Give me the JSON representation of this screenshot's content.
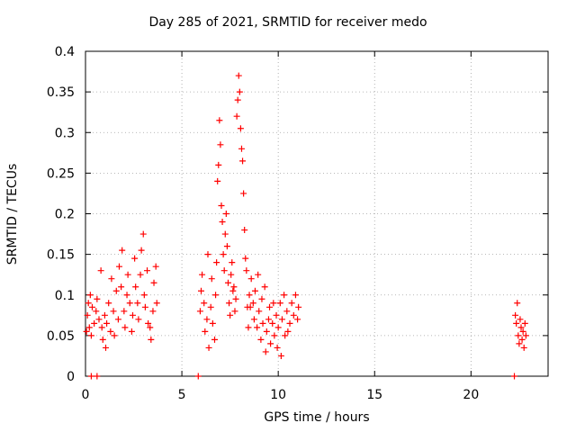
{
  "chart_data": {
    "type": "scatter",
    "title": "Day 285 of 2021, SRMTID for receiver medo",
    "xlabel": "GPS time / hours",
    "ylabel": "SRMTID / TECUs",
    "xlim": [
      0,
      24
    ],
    "ylim": [
      0,
      0.4
    ],
    "xticks": [
      0,
      5,
      10,
      15,
      20
    ],
    "xtick_labels": [
      "0",
      "5",
      "10",
      "15",
      "20"
    ],
    "yticks": [
      0,
      0.05,
      0.1,
      0.15,
      0.2,
      0.25,
      0.3,
      0.35,
      0.4
    ],
    "ytick_labels": [
      "0",
      "0.05",
      "0.1",
      "0.15",
      "0.2",
      "0.25",
      "0.3",
      "0.35",
      "0.4"
    ],
    "grid": true,
    "marker": "+",
    "color": "#ff0000",
    "series": [
      {
        "values": [
          [
            0.05,
            0.055
          ],
          [
            0.1,
            0.075
          ],
          [
            0.15,
            0.09
          ],
          [
            0.2,
            0.06
          ],
          [
            0.25,
            0.1
          ],
          [
            0.3,
            0.05
          ],
          [
            0.35,
            0.085
          ],
          [
            0.45,
            0.065
          ],
          [
            0.55,
            0.08
          ],
          [
            0.6,
            0.095
          ],
          [
            0.7,
            0.07
          ],
          [
            0.8,
            0.13
          ],
          [
            0.85,
            0.06
          ],
          [
            0.9,
            0.045
          ],
          [
            1.0,
            0.075
          ],
          [
            1.05,
            0.035
          ],
          [
            1.1,
            0.065
          ],
          [
            1.2,
            0.09
          ],
          [
            1.3,
            0.055
          ],
          [
            1.35,
            0.12
          ],
          [
            1.45,
            0.08
          ],
          [
            1.5,
            0.05
          ],
          [
            1.6,
            0.105
          ],
          [
            1.7,
            0.07
          ],
          [
            1.75,
            0.135
          ],
          [
            1.85,
            0.11
          ],
          [
            1.9,
            0.155
          ],
          [
            2.0,
            0.08
          ],
          [
            2.05,
            0.06
          ],
          [
            2.15,
            0.1
          ],
          [
            2.2,
            0.125
          ],
          [
            2.3,
            0.09
          ],
          [
            2.4,
            0.055
          ],
          [
            2.45,
            0.075
          ],
          [
            2.55,
            0.145
          ],
          [
            2.6,
            0.11
          ],
          [
            2.7,
            0.09
          ],
          [
            2.75,
            0.07
          ],
          [
            2.85,
            0.125
          ],
          [
            2.9,
            0.155
          ],
          [
            3.0,
            0.175
          ],
          [
            3.05,
            0.1
          ],
          [
            3.1,
            0.085
          ],
          [
            3.2,
            0.13
          ],
          [
            3.25,
            0.065
          ],
          [
            3.35,
            0.06
          ],
          [
            3.4,
            0.045
          ],
          [
            3.5,
            0.08
          ],
          [
            3.55,
            0.115
          ],
          [
            3.65,
            0.135
          ],
          [
            3.7,
            0.09
          ],
          [
            5.95,
            0.08
          ],
          [
            6.0,
            0.105
          ],
          [
            6.05,
            0.125
          ],
          [
            6.15,
            0.09
          ],
          [
            6.2,
            0.055
          ],
          [
            6.3,
            0.07
          ],
          [
            6.35,
            0.15
          ],
          [
            6.4,
            0.035
          ],
          [
            6.5,
            0.085
          ],
          [
            6.55,
            0.12
          ],
          [
            6.6,
            0.065
          ],
          [
            6.7,
            0.045
          ],
          [
            6.75,
            0.1
          ],
          [
            6.8,
            0.14
          ],
          [
            6.85,
            0.24
          ],
          [
            6.9,
            0.26
          ],
          [
            6.95,
            0.315
          ],
          [
            7.0,
            0.285
          ],
          [
            7.05,
            0.21
          ],
          [
            7.1,
            0.19
          ],
          [
            7.15,
            0.15
          ],
          [
            7.2,
            0.13
          ],
          [
            7.25,
            0.175
          ],
          [
            7.3,
            0.2
          ],
          [
            7.35,
            0.16
          ],
          [
            7.4,
            0.115
          ],
          [
            7.45,
            0.09
          ],
          [
            7.5,
            0.075
          ],
          [
            7.55,
            0.125
          ],
          [
            7.6,
            0.14
          ],
          [
            7.65,
            0.105
          ],
          [
            7.7,
            0.11
          ],
          [
            7.75,
            0.08
          ],
          [
            7.8,
            0.095
          ],
          [
            7.85,
            0.32
          ],
          [
            7.9,
            0.34
          ],
          [
            7.95,
            0.37
          ],
          [
            8.0,
            0.35
          ],
          [
            8.05,
            0.305
          ],
          [
            8.1,
            0.28
          ],
          [
            8.15,
            0.265
          ],
          [
            8.2,
            0.225
          ],
          [
            8.25,
            0.18
          ],
          [
            8.3,
            0.145
          ],
          [
            8.35,
            0.13
          ],
          [
            8.4,
            0.085
          ],
          [
            8.45,
            0.06
          ],
          [
            8.5,
            0.1
          ],
          [
            8.55,
            0.085
          ],
          [
            8.6,
            0.12
          ],
          [
            8.7,
            0.09
          ],
          [
            8.75,
            0.07
          ],
          [
            8.8,
            0.105
          ],
          [
            8.9,
            0.06
          ],
          [
            8.95,
            0.125
          ],
          [
            9.0,
            0.08
          ],
          [
            9.1,
            0.045
          ],
          [
            9.15,
            0.095
          ],
          [
            9.2,
            0.065
          ],
          [
            9.3,
            0.11
          ],
          [
            9.35,
            0.03
          ],
          [
            9.4,
            0.055
          ],
          [
            9.5,
            0.07
          ],
          [
            9.55,
            0.085
          ],
          [
            9.6,
            0.04
          ],
          [
            9.7,
            0.065
          ],
          [
            9.75,
            0.09
          ],
          [
            9.8,
            0.05
          ],
          [
            9.9,
            0.075
          ],
          [
            9.95,
            0.035
          ],
          [
            10.0,
            0.06
          ],
          [
            10.1,
            0.09
          ],
          [
            10.15,
            0.025
          ],
          [
            10.2,
            0.07
          ],
          [
            10.3,
            0.1
          ],
          [
            10.35,
            0.05
          ],
          [
            10.45,
            0.08
          ],
          [
            10.5,
            0.055
          ],
          [
            10.6,
            0.065
          ],
          [
            10.7,
            0.09
          ],
          [
            10.8,
            0.075
          ],
          [
            10.9,
            0.1
          ],
          [
            11.0,
            0.07
          ],
          [
            11.05,
            0.085
          ],
          [
            22.3,
            0.075
          ],
          [
            22.35,
            0.065
          ],
          [
            22.4,
            0.09
          ],
          [
            22.45,
            0.05
          ],
          [
            22.5,
            0.04
          ],
          [
            22.55,
            0.07
          ],
          [
            22.6,
            0.06
          ],
          [
            22.65,
            0.045
          ],
          [
            22.7,
            0.055
          ],
          [
            22.75,
            0.035
          ],
          [
            22.8,
            0.065
          ],
          [
            22.85,
            0.05
          ]
        ]
      },
      {
        "values": [
          [
            0.3,
            0
          ],
          [
            0.6,
            0
          ],
          [
            5.85,
            0
          ],
          [
            22.25,
            0
          ]
        ]
      }
    ]
  }
}
